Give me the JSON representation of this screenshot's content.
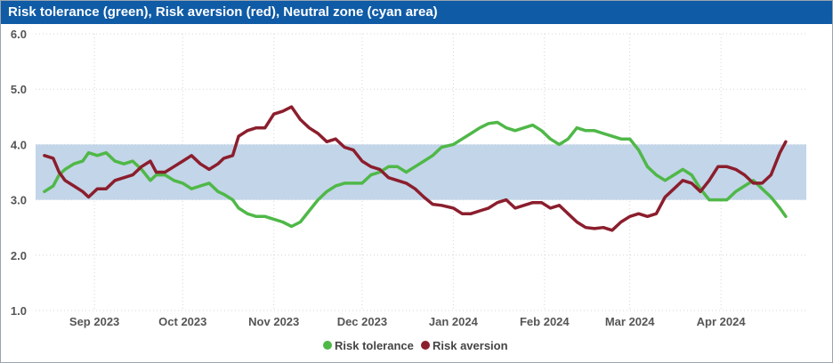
{
  "chart_data": {
    "type": "line",
    "title": "Risk tolerance (green), Risk aversion (red), Neutral zone (cyan area)",
    "ylim": [
      1.0,
      6.0
    ],
    "yticks": [
      "1.0",
      "2.0",
      "3.0",
      "4.0",
      "5.0",
      "6.0"
    ],
    "xlim": [
      "2023-08-12",
      "2024-04-30"
    ],
    "xticks": [
      {
        "date": "2023-09-01",
        "label": "Sep 2023"
      },
      {
        "date": "2023-10-01",
        "label": "Oct 2023"
      },
      {
        "date": "2023-11-01",
        "label": "Nov 2023"
      },
      {
        "date": "2023-12-01",
        "label": "Dec 2023"
      },
      {
        "date": "2024-01-01",
        "label": "Jan 2024"
      },
      {
        "date": "2024-02-01",
        "label": "Feb 2024"
      },
      {
        "date": "2024-03-01",
        "label": "Mar 2024"
      },
      {
        "date": "2024-04-01",
        "label": "Apr 2024"
      }
    ],
    "band": {
      "from": 3.0,
      "to": 4.0,
      "color": "#c3d5e8"
    },
    "grid": true,
    "legend_position": "bottom",
    "series": [
      {
        "name": "Risk tolerance",
        "color": "#4fb848",
        "points": [
          [
            "2023-08-15",
            3.15
          ],
          [
            "2023-08-18",
            3.25
          ],
          [
            "2023-08-20",
            3.45
          ],
          [
            "2023-08-22",
            3.55
          ],
          [
            "2023-08-25",
            3.65
          ],
          [
            "2023-08-28",
            3.7
          ],
          [
            "2023-08-30",
            3.85
          ],
          [
            "2023-09-02",
            3.8
          ],
          [
            "2023-09-05",
            3.85
          ],
          [
            "2023-09-08",
            3.7
          ],
          [
            "2023-09-11",
            3.65
          ],
          [
            "2023-09-14",
            3.7
          ],
          [
            "2023-09-17",
            3.55
          ],
          [
            "2023-09-20",
            3.35
          ],
          [
            "2023-09-22",
            3.45
          ],
          [
            "2023-09-25",
            3.45
          ],
          [
            "2023-09-28",
            3.35
          ],
          [
            "2023-10-01",
            3.3
          ],
          [
            "2023-10-04",
            3.2
          ],
          [
            "2023-10-07",
            3.25
          ],
          [
            "2023-10-10",
            3.3
          ],
          [
            "2023-10-13",
            3.15
          ],
          [
            "2023-10-15",
            3.1
          ],
          [
            "2023-10-18",
            3.0
          ],
          [
            "2023-10-20",
            2.85
          ],
          [
            "2023-10-23",
            2.75
          ],
          [
            "2023-10-26",
            2.7
          ],
          [
            "2023-10-29",
            2.7
          ],
          [
            "2023-11-01",
            2.65
          ],
          [
            "2023-11-04",
            2.6
          ],
          [
            "2023-11-07",
            2.52
          ],
          [
            "2023-11-10",
            2.6
          ],
          [
            "2023-11-13",
            2.8
          ],
          [
            "2023-11-16",
            3.0
          ],
          [
            "2023-11-19",
            3.15
          ],
          [
            "2023-11-22",
            3.25
          ],
          [
            "2023-11-25",
            3.3
          ],
          [
            "2023-11-28",
            3.3
          ],
          [
            "2023-12-01",
            3.3
          ],
          [
            "2023-12-04",
            3.45
          ],
          [
            "2023-12-07",
            3.5
          ],
          [
            "2023-12-10",
            3.6
          ],
          [
            "2023-12-13",
            3.6
          ],
          [
            "2023-12-16",
            3.5
          ],
          [
            "2023-12-19",
            3.6
          ],
          [
            "2023-12-22",
            3.7
          ],
          [
            "2023-12-25",
            3.8
          ],
          [
            "2023-12-28",
            3.95
          ],
          [
            "2024-01-01",
            4.0
          ],
          [
            "2024-01-04",
            4.1
          ],
          [
            "2024-01-07",
            4.2
          ],
          [
            "2024-01-10",
            4.3
          ],
          [
            "2024-01-13",
            4.38
          ],
          [
            "2024-01-16",
            4.4
          ],
          [
            "2024-01-19",
            4.3
          ],
          [
            "2024-01-22",
            4.25
          ],
          [
            "2024-01-25",
            4.3
          ],
          [
            "2024-01-28",
            4.35
          ],
          [
            "2024-01-31",
            4.25
          ],
          [
            "2024-02-03",
            4.1
          ],
          [
            "2024-02-06",
            4.0
          ],
          [
            "2024-02-09",
            4.1
          ],
          [
            "2024-02-12",
            4.3
          ],
          [
            "2024-02-15",
            4.25
          ],
          [
            "2024-02-18",
            4.25
          ],
          [
            "2024-02-21",
            4.2
          ],
          [
            "2024-02-24",
            4.15
          ],
          [
            "2024-02-27",
            4.1
          ],
          [
            "2024-03-01",
            4.1
          ],
          [
            "2024-03-04",
            3.9
          ],
          [
            "2024-03-07",
            3.6
          ],
          [
            "2024-03-10",
            3.45
          ],
          [
            "2024-03-13",
            3.35
          ],
          [
            "2024-03-16",
            3.45
          ],
          [
            "2024-03-19",
            3.55
          ],
          [
            "2024-03-22",
            3.45
          ],
          [
            "2024-03-25",
            3.2
          ],
          [
            "2024-03-28",
            3.0
          ],
          [
            "2024-03-31",
            3.0
          ],
          [
            "2024-04-03",
            3.0
          ],
          [
            "2024-04-06",
            3.15
          ],
          [
            "2024-04-09",
            3.25
          ],
          [
            "2024-04-12",
            3.35
          ],
          [
            "2024-04-15",
            3.2
          ],
          [
            "2024-04-18",
            3.05
          ],
          [
            "2024-04-21",
            2.85
          ],
          [
            "2024-04-23",
            2.7
          ]
        ]
      },
      {
        "name": "Risk aversion",
        "color": "#8b1e2d",
        "points": [
          [
            "2023-08-15",
            3.8
          ],
          [
            "2023-08-18",
            3.75
          ],
          [
            "2023-08-20",
            3.5
          ],
          [
            "2023-08-22",
            3.35
          ],
          [
            "2023-08-25",
            3.25
          ],
          [
            "2023-08-28",
            3.15
          ],
          [
            "2023-08-30",
            3.05
          ],
          [
            "2023-09-02",
            3.2
          ],
          [
            "2023-09-05",
            3.2
          ],
          [
            "2023-09-08",
            3.35
          ],
          [
            "2023-09-11",
            3.4
          ],
          [
            "2023-09-14",
            3.45
          ],
          [
            "2023-09-17",
            3.6
          ],
          [
            "2023-09-20",
            3.7
          ],
          [
            "2023-09-22",
            3.5
          ],
          [
            "2023-09-25",
            3.5
          ],
          [
            "2023-09-28",
            3.6
          ],
          [
            "2023-10-01",
            3.7
          ],
          [
            "2023-10-04",
            3.8
          ],
          [
            "2023-10-07",
            3.65
          ],
          [
            "2023-10-10",
            3.55
          ],
          [
            "2023-10-13",
            3.65
          ],
          [
            "2023-10-15",
            3.75
          ],
          [
            "2023-10-18",
            3.8
          ],
          [
            "2023-10-20",
            4.15
          ],
          [
            "2023-10-23",
            4.25
          ],
          [
            "2023-10-26",
            4.3
          ],
          [
            "2023-10-29",
            4.3
          ],
          [
            "2023-11-01",
            4.55
          ],
          [
            "2023-11-04",
            4.6
          ],
          [
            "2023-11-07",
            4.68
          ],
          [
            "2023-11-10",
            4.45
          ],
          [
            "2023-11-13",
            4.3
          ],
          [
            "2023-11-16",
            4.2
          ],
          [
            "2023-11-19",
            4.05
          ],
          [
            "2023-11-22",
            4.1
          ],
          [
            "2023-11-25",
            3.95
          ],
          [
            "2023-11-28",
            3.9
          ],
          [
            "2023-12-01",
            3.7
          ],
          [
            "2023-12-04",
            3.6
          ],
          [
            "2023-12-07",
            3.55
          ],
          [
            "2023-12-10",
            3.4
          ],
          [
            "2023-12-13",
            3.35
          ],
          [
            "2023-12-16",
            3.3
          ],
          [
            "2023-12-19",
            3.2
          ],
          [
            "2023-12-22",
            3.05
          ],
          [
            "2023-12-25",
            2.92
          ],
          [
            "2023-12-28",
            2.9
          ],
          [
            "2024-01-01",
            2.85
          ],
          [
            "2024-01-04",
            2.75
          ],
          [
            "2024-01-07",
            2.75
          ],
          [
            "2024-01-10",
            2.8
          ],
          [
            "2024-01-13",
            2.85
          ],
          [
            "2024-01-16",
            2.95
          ],
          [
            "2024-01-19",
            3.0
          ],
          [
            "2024-01-22",
            2.85
          ],
          [
            "2024-01-25",
            2.9
          ],
          [
            "2024-01-28",
            2.95
          ],
          [
            "2024-01-31",
            2.95
          ],
          [
            "2024-02-03",
            2.85
          ],
          [
            "2024-02-06",
            2.9
          ],
          [
            "2024-02-09",
            2.75
          ],
          [
            "2024-02-12",
            2.6
          ],
          [
            "2024-02-15",
            2.5
          ],
          [
            "2024-02-18",
            2.48
          ],
          [
            "2024-02-21",
            2.5
          ],
          [
            "2024-02-24",
            2.45
          ],
          [
            "2024-02-27",
            2.6
          ],
          [
            "2024-03-01",
            2.7
          ],
          [
            "2024-03-04",
            2.75
          ],
          [
            "2024-03-07",
            2.7
          ],
          [
            "2024-03-10",
            2.75
          ],
          [
            "2024-03-13",
            3.05
          ],
          [
            "2024-03-16",
            3.2
          ],
          [
            "2024-03-19",
            3.35
          ],
          [
            "2024-03-22",
            3.3
          ],
          [
            "2024-03-25",
            3.15
          ],
          [
            "2024-03-28",
            3.35
          ],
          [
            "2024-03-31",
            3.6
          ],
          [
            "2024-04-03",
            3.6
          ],
          [
            "2024-04-06",
            3.55
          ],
          [
            "2024-04-09",
            3.45
          ],
          [
            "2024-04-12",
            3.3
          ],
          [
            "2024-04-15",
            3.3
          ],
          [
            "2024-04-18",
            3.45
          ],
          [
            "2024-04-21",
            3.85
          ],
          [
            "2024-04-23",
            4.05
          ]
        ]
      }
    ]
  }
}
